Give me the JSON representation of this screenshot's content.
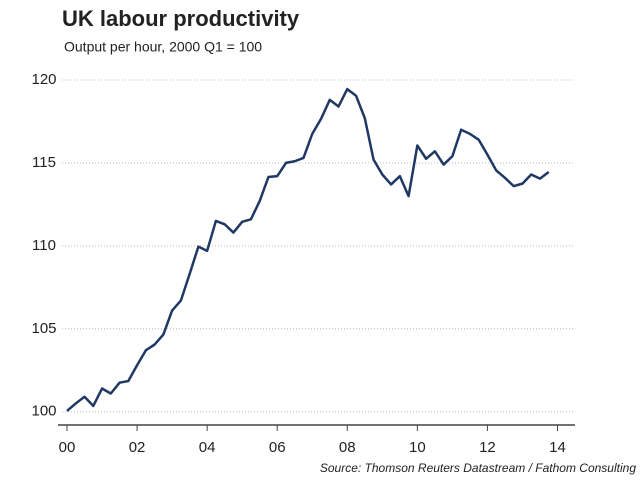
{
  "chart_data": {
    "type": "line",
    "title": "UK labour productivity",
    "subtitle": "Output per hour, 2000 Q1 = 100",
    "source": "Source: Thomson Reuters Datastream / Fathom Consulting",
    "x": [
      2000,
      2000.25,
      2000.5,
      2000.75,
      2001,
      2001.25,
      2001.5,
      2001.75,
      2002,
      2002.25,
      2002.5,
      2002.75,
      2003,
      2003.25,
      2003.5,
      2003.75,
      2004,
      2004.25,
      2004.5,
      2004.75,
      2005,
      2005.25,
      2005.5,
      2005.75,
      2006,
      2006.25,
      2006.5,
      2006.75,
      2007,
      2007.25,
      2007.5,
      2007.75,
      2008,
      2008.25,
      2008.5,
      2008.75,
      2009,
      2009.25,
      2009.5,
      2009.75,
      2010,
      2010.25,
      2010.5,
      2010.75,
      2011,
      2011.25,
      2011.5,
      2011.75,
      2012,
      2012.25,
      2012.5,
      2012.75,
      2013,
      2013.25,
      2013.5,
      2013.75
    ],
    "series": [
      {
        "name": "Output per hour",
        "color": "#1f3864",
        "values": [
          100.05,
          100.5,
          100.9,
          100.35,
          101.4,
          101.1,
          101.75,
          101.85,
          102.8,
          103.7,
          104.05,
          104.65,
          106.1,
          106.7,
          108.3,
          109.95,
          109.7,
          111.5,
          111.3,
          110.8,
          111.45,
          111.6,
          112.7,
          114.15,
          114.2,
          115.0,
          115.1,
          115.3,
          116.75,
          117.65,
          118.8,
          118.4,
          119.45,
          119.05,
          117.7,
          115.2,
          114.3,
          113.7,
          114.2,
          113.0,
          116.05,
          115.25,
          115.7,
          114.9,
          115.4,
          117.0,
          116.75,
          116.4,
          115.5,
          114.55,
          114.1,
          113.6,
          113.75,
          114.3,
          114.05,
          114.45
        ]
      }
    ],
    "xlim": [
      2000,
      2014.5
    ],
    "xticks": [
      {
        "value": 2000,
        "label": "00"
      },
      {
        "value": 2002,
        "label": "02"
      },
      {
        "value": 2004,
        "label": "04"
      },
      {
        "value": 2006,
        "label": "06"
      },
      {
        "value": 2008,
        "label": "08"
      },
      {
        "value": 2010,
        "label": "10"
      },
      {
        "value": 2012,
        "label": "12"
      },
      {
        "value": 2014,
        "label": "14"
      }
    ],
    "ylim": [
      99.2,
      120.6
    ],
    "yticks": [
      100,
      105,
      110,
      115,
      120
    ],
    "grid": true
  }
}
